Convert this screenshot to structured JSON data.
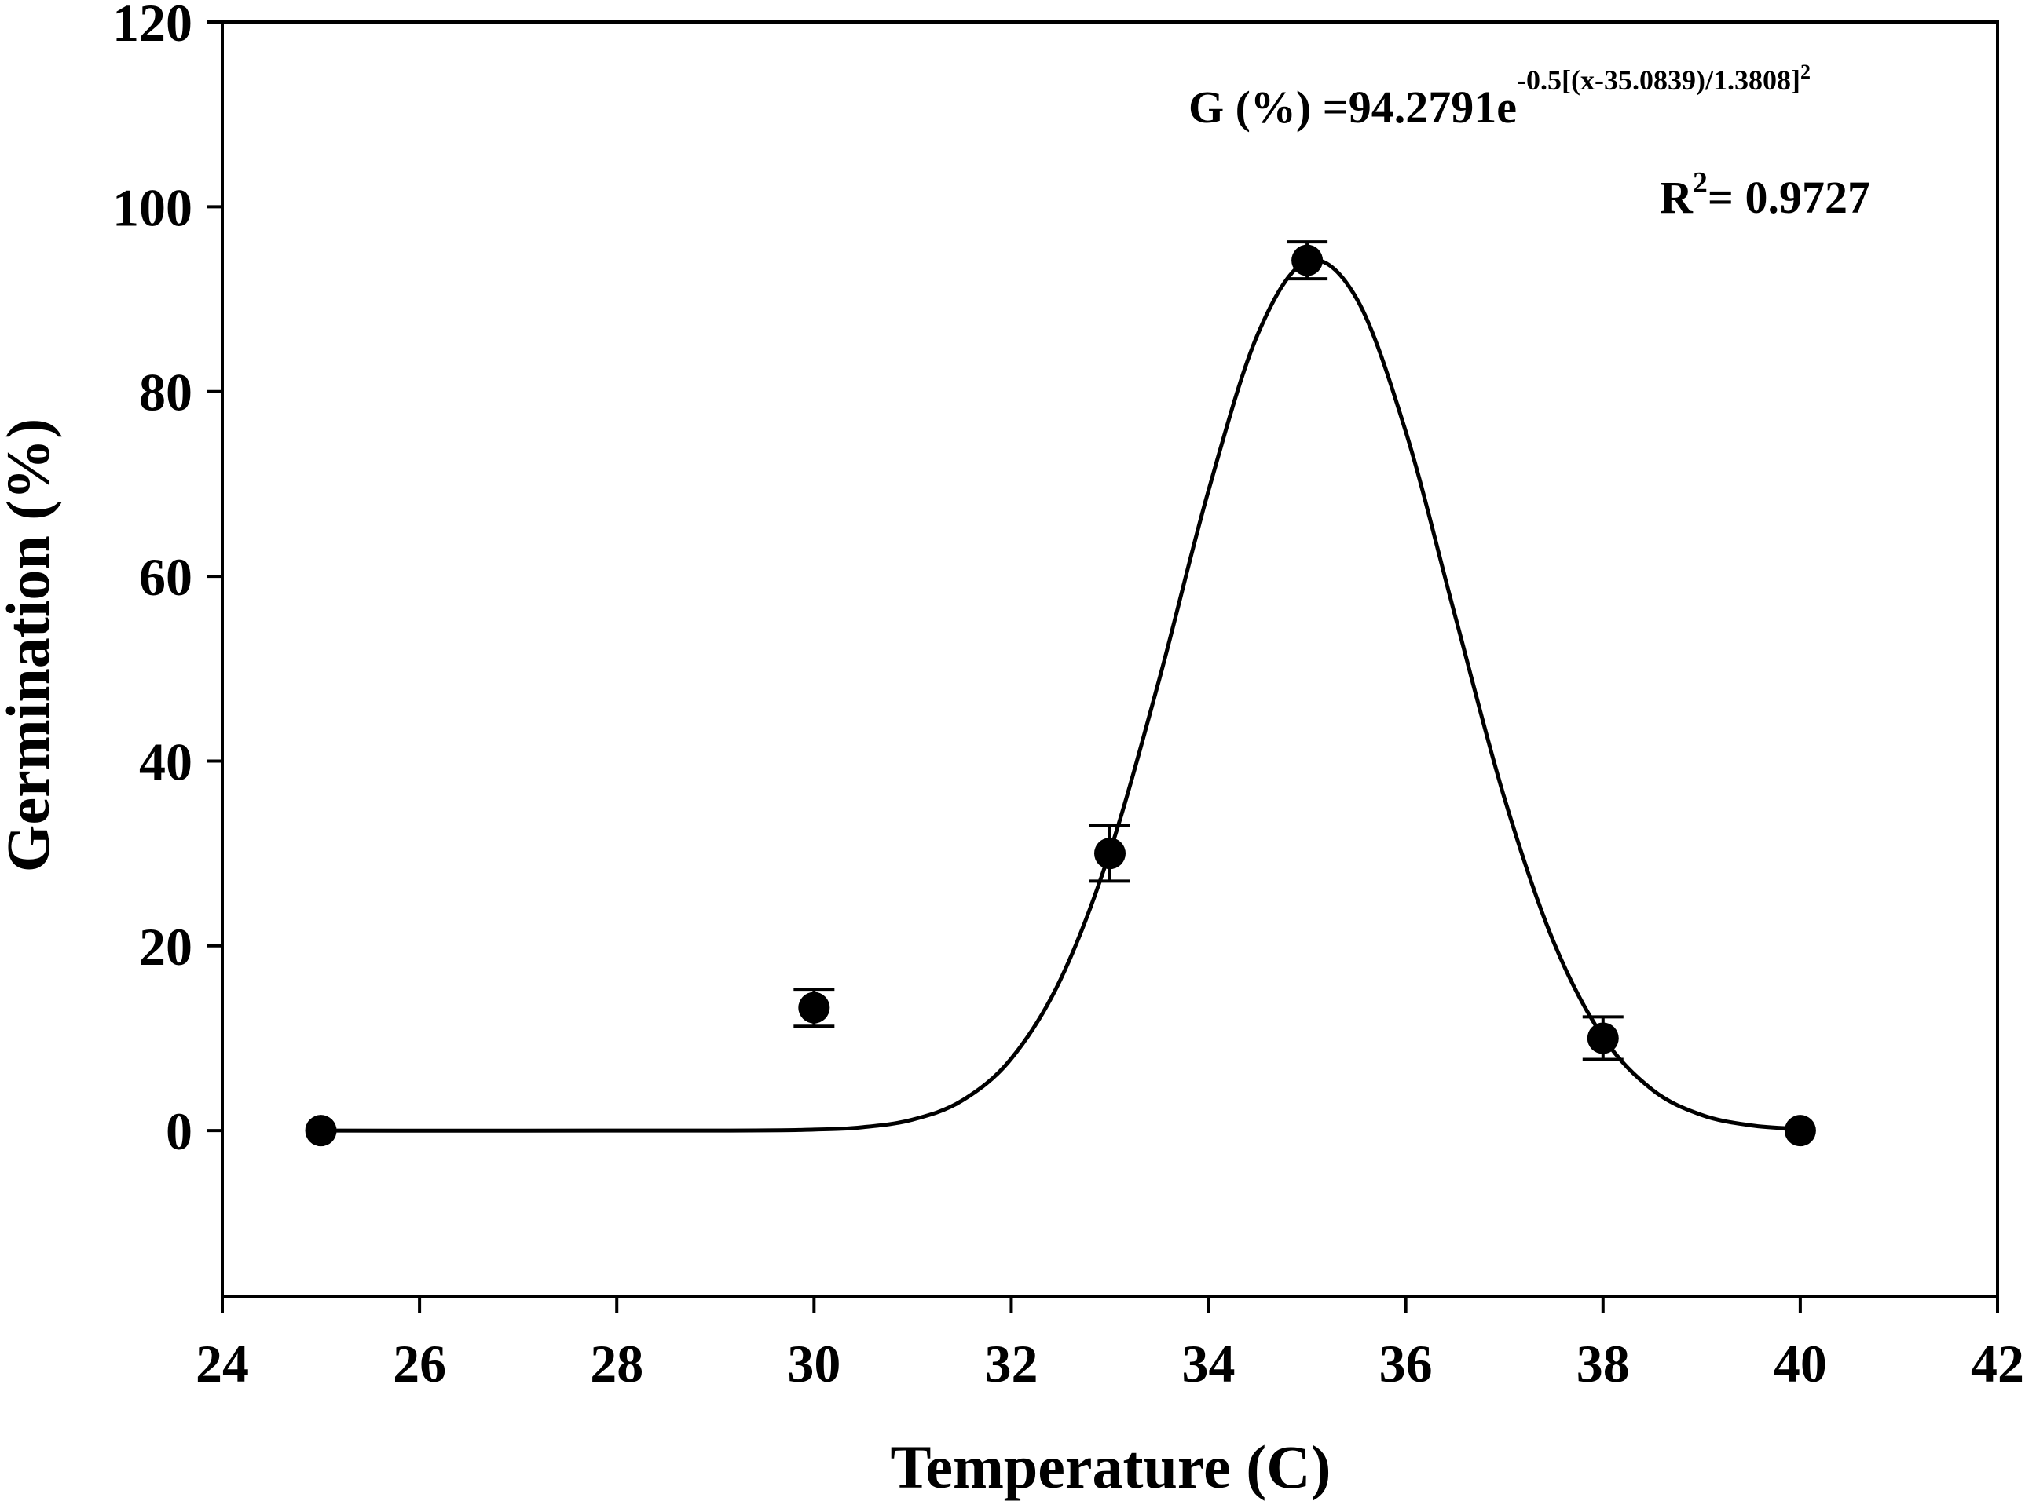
{
  "chart_data": {
    "type": "scatter",
    "x_label": "Temperature (C)",
    "y_label": "Germination (%)",
    "equation": {
      "base": "G (%) =94.2791e",
      "exponent": "-0.5[(x-35.0839)/1.3808]",
      "exponent_power": "2"
    },
    "r_squared": {
      "base": "R",
      "power": "2",
      "rest": "= 0.9727"
    },
    "xlim": [
      24,
      42
    ],
    "xticks": [
      24,
      26,
      28,
      30,
      32,
      34,
      36,
      38,
      40,
      42
    ],
    "ylim": [
      -18,
      120
    ],
    "yticks": [
      0,
      20,
      40,
      60,
      80,
      100,
      120
    ],
    "series": [
      {
        "type": "scatter",
        "color": "#000000",
        "x": [
          25,
          30,
          33,
          35,
          38,
          40
        ],
        "values": [
          0,
          13.3,
          30,
          94.2,
          10,
          0
        ],
        "errors": [
          0,
          2,
          3,
          2,
          2.3,
          0
        ]
      },
      {
        "type": "line",
        "color": "#000000",
        "x": [
          25,
          29,
          30,
          30.5,
          31,
          31.5,
          32,
          32.5,
          33,
          33.5,
          34,
          34.5,
          35,
          35.5,
          36,
          36.5,
          37,
          37.5,
          38,
          38.5,
          39,
          39.5,
          40
        ],
        "values": [
          0,
          0.006,
          0.11,
          0.38,
          1.19,
          3.24,
          7.79,
          16.37,
          30.19,
          48.83,
          69.29,
          86.22,
          94.1,
          90.09,
          75.66,
          55.73,
          36,
          20.4,
          10.14,
          4.42,
          1.69,
          0.57,
          0.17
        ]
      }
    ]
  }
}
